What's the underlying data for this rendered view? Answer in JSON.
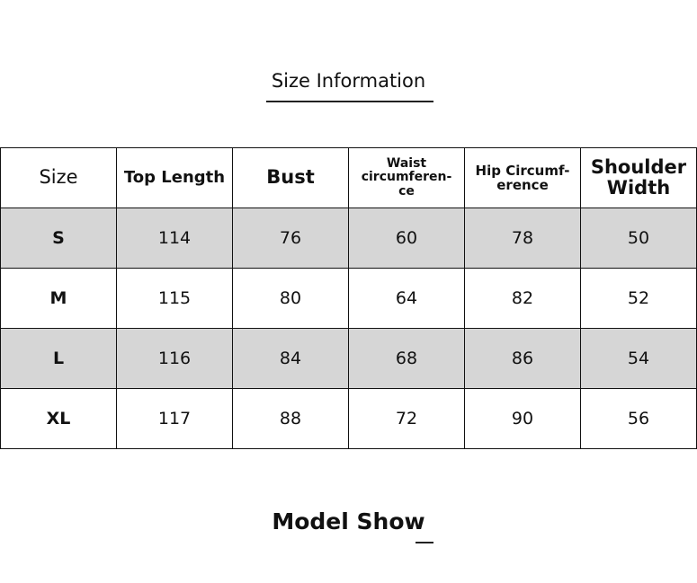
{
  "header": {
    "title": "Size Information"
  },
  "table": {
    "columns": [
      "Size",
      "Top Length",
      "Bust",
      "Waist\ncircumferen-\nce",
      "Hip Circumf-\nerence",
      "Shoulder\nWidth"
    ],
    "rows": [
      [
        "S",
        "114",
        "76",
        "60",
        "78",
        "50"
      ],
      [
        "M",
        "115",
        "80",
        "64",
        "82",
        "52"
      ],
      [
        "L",
        "116",
        "84",
        "68",
        "86",
        "54"
      ],
      [
        "XL",
        "117",
        "88",
        "72",
        "90",
        "56"
      ]
    ]
  },
  "footer": {
    "title": "Model Show"
  }
}
